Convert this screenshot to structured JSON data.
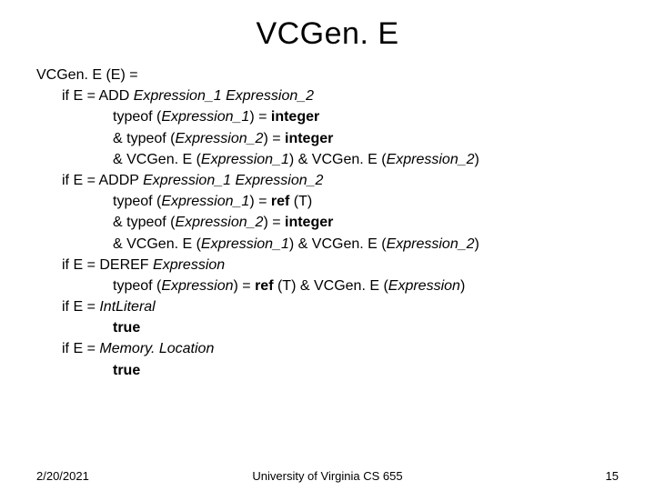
{
  "title": "VCGen. E",
  "lines": [
    {
      "indent": "i0",
      "segments": [
        {
          "t": "VCGen. E (E) = "
        }
      ]
    },
    {
      "indent": "i1",
      "segments": [
        {
          "t": "if E = ADD "
        },
        {
          "t": "Expression_1 Expression_2",
          "style": "ital"
        }
      ]
    },
    {
      "indent": "i2",
      "segments": [
        {
          "t": "typeof ("
        },
        {
          "t": "Expression_1",
          "style": "ital"
        },
        {
          "t": ") = "
        },
        {
          "t": "integer",
          "style": "bold"
        }
      ]
    },
    {
      "indent": "i2",
      "segments": [
        {
          "t": "& typeof ("
        },
        {
          "t": "Expression_2",
          "style": "ital"
        },
        {
          "t": ") = "
        },
        {
          "t": "integer",
          "style": "bold"
        }
      ]
    },
    {
      "indent": "i2",
      "segments": [
        {
          "t": "& VCGen. E ("
        },
        {
          "t": "Expression_1",
          "style": "ital"
        },
        {
          "t": ") & VCGen. E ("
        },
        {
          "t": "Expression_2",
          "style": "ital"
        },
        {
          "t": ")"
        }
      ]
    },
    {
      "indent": "i1",
      "segments": [
        {
          "t": "if E = ADDP "
        },
        {
          "t": "Expression_1 Expression_2",
          "style": "ital"
        }
      ]
    },
    {
      "indent": "i2",
      "segments": [
        {
          "t": "typeof ("
        },
        {
          "t": "Expression_1",
          "style": "ital"
        },
        {
          "t": ") = "
        },
        {
          "t": "ref",
          "style": "bold"
        },
        {
          "t": " (T)"
        }
      ]
    },
    {
      "indent": "i2",
      "segments": [
        {
          "t": "& typeof ("
        },
        {
          "t": "Expression_2",
          "style": "ital"
        },
        {
          "t": ") = "
        },
        {
          "t": "integer",
          "style": "bold"
        }
      ]
    },
    {
      "indent": "i2",
      "segments": [
        {
          "t": "& VCGen. E ("
        },
        {
          "t": "Expression_1",
          "style": "ital"
        },
        {
          "t": ") & VCGen. E ("
        },
        {
          "t": "Expression_2",
          "style": "ital"
        },
        {
          "t": ")"
        }
      ]
    },
    {
      "indent": "i1",
      "segments": [
        {
          "t": "if E = DEREF "
        },
        {
          "t": "Expression",
          "style": "ital"
        }
      ]
    },
    {
      "indent": "i2",
      "segments": [
        {
          "t": "typeof ("
        },
        {
          "t": "Expression",
          "style": "ital"
        },
        {
          "t": ") = "
        },
        {
          "t": "ref",
          "style": "bold"
        },
        {
          "t": " (T) & VCGen. E ("
        },
        {
          "t": "Expression",
          "style": "ital"
        },
        {
          "t": ")"
        }
      ]
    },
    {
      "indent": "i1",
      "segments": [
        {
          "t": "if E = "
        },
        {
          "t": "IntLiteral",
          "style": "ital"
        }
      ]
    },
    {
      "indent": "i2",
      "segments": [
        {
          "t": "true",
          "style": "bold"
        }
      ]
    },
    {
      "indent": "i1",
      "segments": [
        {
          "t": "if E = "
        },
        {
          "t": "Memory. Location",
          "style": "ital"
        }
      ]
    },
    {
      "indent": "i2",
      "segments": [
        {
          "t": "true",
          "style": "bold"
        }
      ]
    }
  ],
  "footer": {
    "date": "2/20/2021",
    "center": "University of Virginia CS 655",
    "page": "15"
  },
  "colors": {
    "background": "#ffffff",
    "text": "#000000"
  }
}
